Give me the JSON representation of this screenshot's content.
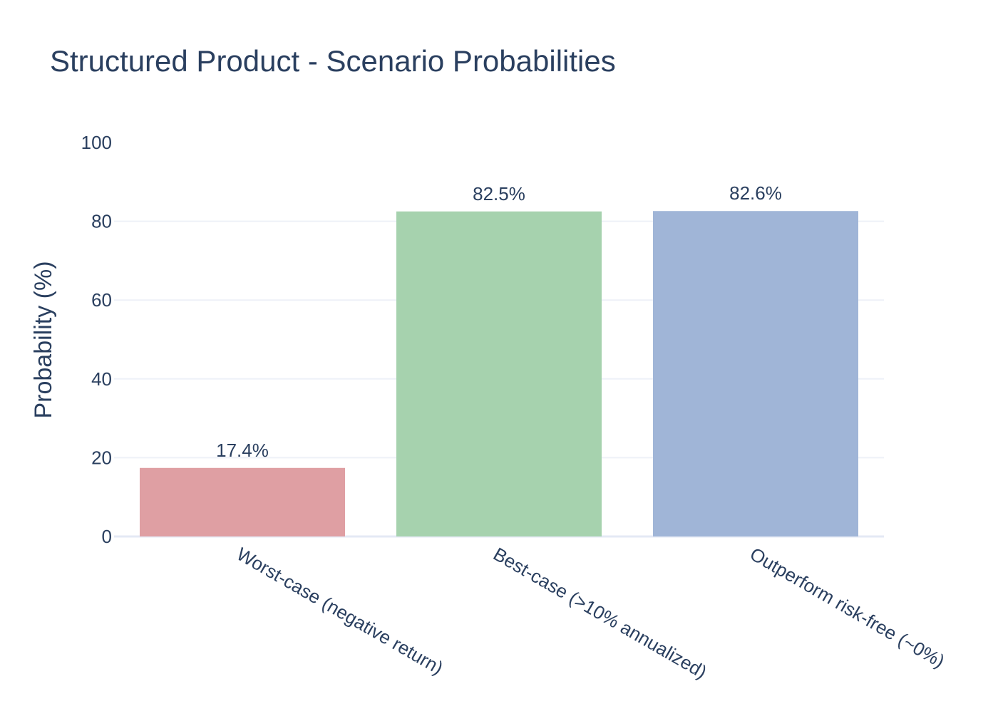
{
  "chart_data": {
    "type": "bar",
    "title": "Structured Product - Scenario Probabilities",
    "xlabel": "",
    "ylabel": "Probability (%)",
    "ylim": [
      0,
      100
    ],
    "yticks": [
      0,
      20,
      40,
      60,
      80,
      100
    ],
    "grid": true,
    "legend": "none",
    "categories": [
      "Worst-case (negative return)",
      "Best-case (>10% annualized)",
      "Outperform risk-free (~0%)"
    ],
    "values": [
      17.4,
      82.5,
      82.6
    ],
    "data_labels": [
      "17.4%",
      "82.5%",
      "82.6%"
    ],
    "colors": [
      "#df9fa3",
      "#a6d2ae",
      "#a0b5d7"
    ]
  }
}
